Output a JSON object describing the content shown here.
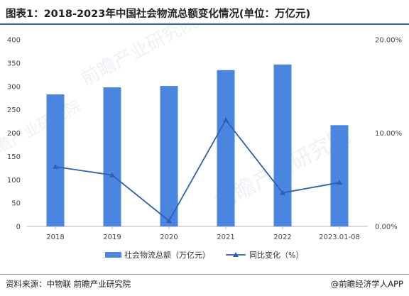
{
  "title": "图表1：2018-2023年中国社会物流总额变化情况(单位：万亿元)",
  "footer": {
    "source": "资料来源：中物联 前瞻产业研究院",
    "brand": "@前瞻经济学人APP"
  },
  "watermark": "前瞻产业研究院",
  "colors": {
    "bar": "#4a86e0",
    "line": "#2e5fb8",
    "accent": "#2b64c8"
  },
  "chart_data": {
    "type": "bar",
    "categories": [
      "2018",
      "2019",
      "2020",
      "2021",
      "2022",
      "2023.01-08"
    ],
    "series": [
      {
        "name": "社会物流总额（万亿元）",
        "type": "bar",
        "axis": "left",
        "values": [
          283,
          298,
          301,
          335,
          347,
          217
        ]
      },
      {
        "name": "同比变化（%）",
        "type": "line",
        "axis": "right",
        "marker": "triangle",
        "values": [
          6.4,
          5.5,
          0.6,
          11.4,
          3.6,
          4.7
        ]
      }
    ],
    "y_left": {
      "min": 0,
      "max": 400,
      "ticks": [
        "0",
        "50",
        "100",
        "150",
        "200",
        "250",
        "300",
        "350",
        "400"
      ]
    },
    "y_right": {
      "min": 0,
      "max": 20,
      "ticks": [
        "0.00%",
        "10.00%",
        "20.00%"
      ]
    },
    "legend_position": "bottom",
    "grid": false
  }
}
